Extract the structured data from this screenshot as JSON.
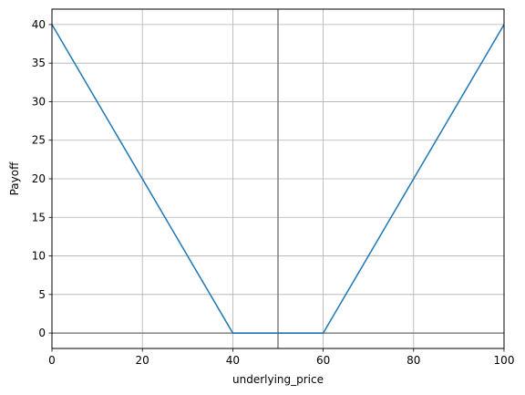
{
  "chart_data": {
    "type": "line",
    "title": "",
    "xlabel": "underlying_price",
    "ylabel": "Payoff",
    "xlim": [
      0,
      100
    ],
    "ylim": [
      -2,
      42
    ],
    "xticks": [
      0,
      20,
      40,
      60,
      80,
      100
    ],
    "yticks": [
      0,
      5,
      10,
      15,
      20,
      25,
      30,
      35,
      40
    ],
    "grid": true,
    "legend": "none",
    "series": [
      {
        "color": "#1f77b4",
        "x": [
          0,
          40,
          60,
          100
        ],
        "y": [
          40,
          0,
          0,
          40
        ]
      }
    ],
    "reference_lines": {
      "vertical_x": 50,
      "horizontal_y": 0,
      "color": "#808080"
    }
  }
}
